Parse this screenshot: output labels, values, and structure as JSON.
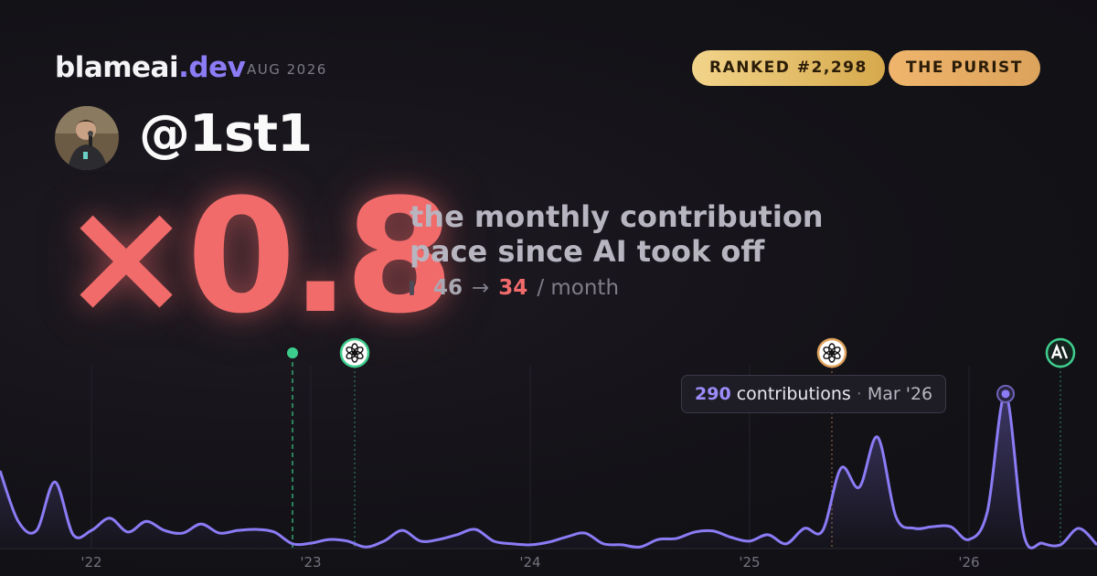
{
  "header": {
    "brand": "blameai",
    "brand_tld": ".dev",
    "date": "AUG 2026",
    "badges": [
      "RANKED #2,298",
      "THE PURIST"
    ],
    "handle": "@1st1"
  },
  "summary": {
    "multiplier": "×0.8",
    "line1": "the monthly contribution",
    "line2": "pace since AI took off",
    "before": 46,
    "arrow": "→",
    "after": 34,
    "unit": "/ month"
  },
  "chart_data": {
    "type": "line",
    "color": "#8b7cf6",
    "categories": [
      null,
      null,
      null,
      null,
      null,
      "'22",
      null,
      null,
      null,
      null,
      null,
      null,
      null,
      null,
      null,
      null,
      null,
      "'23",
      null,
      null,
      null,
      null,
      null,
      null,
      null,
      null,
      null,
      null,
      null,
      "'24",
      null,
      null,
      null,
      null,
      null,
      null,
      null,
      null,
      null,
      null,
      null,
      "'25",
      null,
      null,
      null,
      null,
      null,
      null,
      null,
      null,
      null,
      null,
      null,
      "'26",
      null,
      null,
      null,
      null,
      null,
      null,
      null
    ],
    "series": [
      {
        "name": "contributions",
        "color": "#8b7cf6",
        "values": [
          146,
          51,
          34,
          125,
          26,
          34,
          57,
          31,
          51,
          34,
          29,
          46,
          29,
          34,
          36,
          31,
          9,
          10,
          17,
          14,
          3,
          14,
          34,
          14,
          17,
          26,
          36,
          14,
          9,
          7,
          12,
          22,
          29,
          9,
          7,
          3,
          17,
          19,
          31,
          33,
          21,
          14,
          26,
          9,
          38,
          34,
          151,
          115,
          209,
          60,
          38,
          41,
          41,
          17,
          69,
          290,
          26,
          10,
          7,
          38,
          7
        ]
      }
    ],
    "ylim": [
      0,
      300
    ],
    "tooltip": {
      "label": "contributions",
      "separator": "·",
      "date": "Mar '26"
    }
  }
}
